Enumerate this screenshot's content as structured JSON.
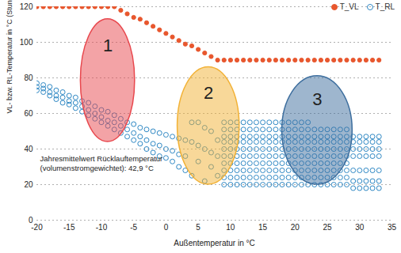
{
  "chart_data": {
    "type": "scatter",
    "x_label": "Außentemperatur in °C",
    "y_label": "VL- bzw. RL-Temperatur in °C (Stundenmittelwerte)",
    "xlim": [
      -20,
      35
    ],
    "xticks": [
      -20,
      -15,
      -10,
      -5,
      0,
      5,
      10,
      15,
      20,
      25,
      30,
      35
    ],
    "ylim": [
      0,
      120
    ],
    "yticks": [
      0,
      20,
      40,
      60,
      80,
      100,
      120
    ],
    "grid": true,
    "legend": "top-right",
    "series": [
      {
        "name": "T_VL",
        "color": "#e8572e",
        "marker": "filled_circle",
        "x": [
          -20,
          -19,
          -18,
          -17,
          -16,
          -15,
          -14,
          -13,
          -12,
          -11,
          -10,
          -9,
          -8,
          -7,
          -6,
          -5,
          -4,
          -3,
          -2,
          -1,
          0,
          1,
          2,
          3,
          4,
          5,
          6,
          7,
          8,
          9,
          10,
          11,
          12,
          13,
          14,
          15,
          16,
          17,
          18,
          19,
          20,
          21,
          22,
          23,
          24,
          25,
          26,
          27,
          28,
          29,
          30,
          31,
          32,
          33
        ],
        "values": [
          120,
          120,
          120,
          120,
          120,
          120,
          120,
          120,
          120,
          120,
          120,
          120,
          120,
          118,
          116,
          114,
          113,
          111,
          109,
          107,
          105,
          103,
          101,
          99,
          98,
          96,
          94,
          92,
          90,
          90,
          90,
          90,
          90,
          90,
          90,
          90,
          90,
          90,
          90,
          90,
          90,
          90,
          90,
          90,
          90,
          90,
          90,
          90,
          90,
          90,
          90,
          90,
          90,
          90
        ]
      },
      {
        "name": "T_RL",
        "color": "#2f88c4",
        "marker": "open_circle",
        "x": [
          -20,
          -20,
          -20,
          -19,
          -19,
          -19,
          -18,
          -18,
          -18,
          -17,
          -17,
          -17,
          -16,
          -16,
          -16,
          -15,
          -15,
          -15,
          -14,
          -14,
          -14,
          -13,
          -13,
          -13,
          -12,
          -12,
          -12,
          -11,
          -11,
          -11,
          -10,
          -10,
          -10,
          -9,
          -9,
          -9,
          -8,
          -8,
          -8,
          -7,
          -7,
          -7,
          -6,
          -6,
          -6,
          -5,
          -5,
          -5,
          -4,
          -4,
          -4,
          -3,
          -3,
          -3,
          -2,
          -2,
          -2,
          -1,
          -1,
          -1,
          0,
          0,
          0,
          1,
          1,
          1,
          2,
          2,
          2,
          3,
          3,
          3,
          4,
          4,
          4,
          5,
          5,
          5,
          6,
          6,
          6,
          7,
          7,
          7,
          8,
          8,
          8,
          9,
          9,
          9,
          9,
          9,
          9,
          9,
          9,
          9,
          9,
          10,
          10,
          10,
          10,
          10,
          10,
          10,
          10,
          10,
          10,
          11,
          11,
          11,
          11,
          11,
          11,
          11,
          11,
          11,
          11,
          12,
          12,
          12,
          12,
          12,
          12,
          12,
          12,
          12,
          12,
          13,
          13,
          13,
          13,
          13,
          13,
          13,
          13,
          13,
          13,
          14,
          14,
          14,
          14,
          14,
          14,
          14,
          14,
          14,
          14,
          15,
          15,
          15,
          15,
          15,
          15,
          15,
          15,
          15,
          15,
          16,
          16,
          16,
          16,
          16,
          16,
          16,
          16,
          16,
          16,
          17,
          17,
          17,
          17,
          17,
          17,
          17,
          17,
          17,
          17,
          18,
          18,
          18,
          18,
          18,
          18,
          18,
          18,
          18,
          18,
          19,
          19,
          19,
          19,
          19,
          19,
          19,
          19,
          19,
          19,
          20,
          20,
          20,
          20,
          20,
          20,
          20,
          20,
          20,
          20,
          21,
          21,
          21,
          21,
          21,
          21,
          21,
          21,
          21,
          21,
          22,
          22,
          22,
          22,
          22,
          22,
          22,
          22,
          22,
          22,
          23,
          23,
          23,
          23,
          23,
          23,
          23,
          23,
          23,
          24,
          24,
          24,
          24,
          24,
          24,
          24,
          24,
          24,
          25,
          25,
          25,
          25,
          25,
          25,
          25,
          25,
          25,
          26,
          26,
          26,
          26,
          26,
          26,
          26,
          26,
          26,
          27,
          27,
          27,
          27,
          27,
          27,
          27,
          27,
          27,
          28,
          28,
          28,
          28,
          28,
          28,
          28,
          28,
          28,
          29,
          29,
          29,
          29,
          29,
          29,
          29,
          30,
          30,
          30,
          30,
          30,
          30,
          30,
          31,
          31,
          31,
          31,
          31,
          31,
          31,
          32,
          32,
          32,
          32,
          32,
          32,
          32,
          33,
          33,
          33,
          33,
          33,
          33,
          33
        ],
        "values": [
          75,
          73,
          77,
          76,
          74,
          72,
          75,
          72,
          70,
          73,
          70,
          68,
          72,
          69,
          66,
          70,
          67,
          65,
          69,
          66,
          63,
          67,
          64,
          61,
          66,
          62,
          59,
          64,
          60,
          57,
          62,
          58,
          55,
          61,
          56,
          53,
          59,
          55,
          51,
          57,
          53,
          49,
          55,
          51,
          47,
          54,
          49,
          45,
          52,
          47,
          43,
          51,
          45,
          40,
          50,
          43,
          38,
          49,
          42,
          36,
          48,
          40,
          35,
          47,
          39,
          33,
          46,
          37,
          30,
          45,
          36,
          28,
          44,
          55,
          25,
          42,
          55,
          33,
          40,
          52,
          22,
          38,
          50,
          30,
          36,
          45,
          25,
          55,
          51,
          47,
          44,
          40,
          36,
          32,
          28,
          24,
          20,
          55,
          51,
          47,
          44,
          40,
          36,
          32,
          28,
          24,
          20,
          55,
          51,
          47,
          44,
          40,
          36,
          32,
          28,
          24,
          20,
          55,
          51,
          47,
          44,
          40,
          36,
          32,
          28,
          24,
          20,
          55,
          51,
          47,
          44,
          40,
          36,
          32,
          28,
          24,
          20,
          55,
          51,
          47,
          44,
          40,
          36,
          32,
          28,
          24,
          20,
          55,
          51,
          47,
          44,
          40,
          36,
          32,
          28,
          24,
          20,
          55,
          51,
          47,
          44,
          40,
          36,
          32,
          28,
          24,
          20,
          55,
          51,
          47,
          44,
          40,
          36,
          32,
          28,
          24,
          20,
          55,
          51,
          47,
          44,
          40,
          36,
          32,
          28,
          24,
          20,
          55,
          51,
          47,
          44,
          40,
          36,
          32,
          28,
          24,
          20,
          55,
          51,
          47,
          44,
          40,
          36,
          32,
          28,
          24,
          20,
          55,
          51,
          47,
          44,
          40,
          36,
          32,
          28,
          24,
          20,
          55,
          51,
          47,
          44,
          40,
          36,
          32,
          28,
          24,
          20,
          51,
          47,
          44,
          40,
          36,
          32,
          28,
          24,
          20,
          51,
          47,
          44,
          40,
          36,
          32,
          28,
          24,
          20,
          51,
          47,
          44,
          40,
          36,
          32,
          28,
          24,
          20,
          51,
          47,
          44,
          40,
          36,
          32,
          28,
          24,
          20,
          51,
          47,
          44,
          40,
          36,
          32,
          28,
          24,
          20,
          51,
          47,
          44,
          40,
          36,
          32,
          28,
          24,
          20,
          47,
          44,
          40,
          36,
          28,
          22,
          18,
          47,
          44,
          40,
          36,
          28,
          22,
          18,
          47,
          44,
          40,
          36,
          28,
          22,
          18,
          47,
          44,
          40,
          36,
          28,
          22,
          18,
          47,
          44,
          40,
          36,
          28,
          22,
          18
        ]
      }
    ],
    "annotations": [
      {
        "text": [
          "Jahresmittelwert Rücklauftemperatur",
          "(volumenstromgewichtet): 42,9 °C"
        ],
        "x": -19.5,
        "y": 37
      }
    ],
    "regions": [
      {
        "label": "1",
        "color": "#e8474d",
        "x": [
          -13.2,
          -4.8
        ],
        "y": [
          44,
          113
        ]
      },
      {
        "label": "2",
        "color": "#f2b134",
        "x": [
          1.8,
          11.4
        ],
        "y": [
          20,
          86
        ]
      },
      {
        "label": "3",
        "color": "#3d6e9e",
        "x": [
          18,
          28.9
        ],
        "y": [
          20,
          81
        ]
      }
    ]
  }
}
